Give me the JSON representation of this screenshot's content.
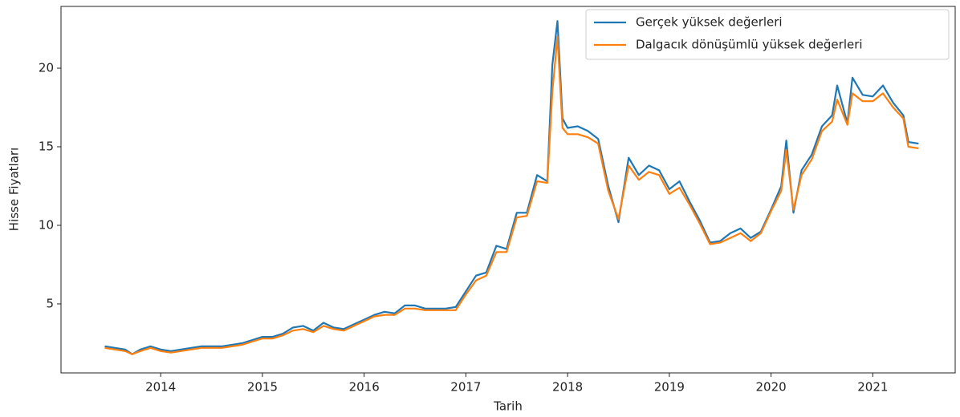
{
  "chart_data": {
    "type": "line",
    "xlabel": "Tarih",
    "ylabel": "Hisse Fiyatları",
    "x": [
      2013.45,
      2013.55,
      2013.65,
      2013.72,
      2013.8,
      2013.9,
      2014.0,
      2014.1,
      2014.2,
      2014.3,
      2014.4,
      2014.5,
      2014.6,
      2014.7,
      2014.8,
      2014.9,
      2015.0,
      2015.1,
      2015.2,
      2015.3,
      2015.4,
      2015.5,
      2015.6,
      2015.7,
      2015.8,
      2015.9,
      2016.0,
      2016.1,
      2016.2,
      2016.3,
      2016.4,
      2016.5,
      2016.6,
      2016.7,
      2016.8,
      2016.9,
      2017.0,
      2017.1,
      2017.2,
      2017.3,
      2017.4,
      2017.5,
      2017.6,
      2017.7,
      2017.8,
      2017.85,
      2017.9,
      2017.95,
      2018.0,
      2018.1,
      2018.2,
      2018.3,
      2018.4,
      2018.5,
      2018.6,
      2018.7,
      2018.8,
      2018.9,
      2019.0,
      2019.1,
      2019.2,
      2019.3,
      2019.4,
      2019.5,
      2019.6,
      2019.7,
      2019.8,
      2019.9,
      2020.0,
      2020.1,
      2020.15,
      2020.22,
      2020.3,
      2020.4,
      2020.5,
      2020.6,
      2020.65,
      2020.75,
      2020.8,
      2020.9,
      2021.0,
      2021.1,
      2021.2,
      2021.3,
      2021.35,
      2021.45
    ],
    "series": [
      {
        "name": "Gerçek yüksek değerleri",
        "color": "#1f77b4",
        "values": [
          2.3,
          2.2,
          2.1,
          1.8,
          2.1,
          2.3,
          2.1,
          2.0,
          2.1,
          2.2,
          2.3,
          2.3,
          2.3,
          2.4,
          2.5,
          2.7,
          2.9,
          2.9,
          3.1,
          3.5,
          3.6,
          3.3,
          3.8,
          3.5,
          3.4,
          3.7,
          4.0,
          4.3,
          4.5,
          4.4,
          4.9,
          4.9,
          4.7,
          4.7,
          4.7,
          4.8,
          5.8,
          6.8,
          7.0,
          8.7,
          8.5,
          10.8,
          10.8,
          13.2,
          12.8,
          20.2,
          23.0,
          16.8,
          16.2,
          16.3,
          16.0,
          15.5,
          12.5,
          10.2,
          14.3,
          13.2,
          13.8,
          13.5,
          12.3,
          12.8,
          11.5,
          10.3,
          8.9,
          9.0,
          9.5,
          9.8,
          9.2,
          9.6,
          11.0,
          12.5,
          15.4,
          10.8,
          13.5,
          14.5,
          16.3,
          17.0,
          18.9,
          16.5,
          19.4,
          18.3,
          18.2,
          18.9,
          17.8,
          17.0,
          15.3,
          15.2
        ]
      },
      {
        "name": "Dalgacık dönüşümlü yüksek değerleri",
        "color": "#ff7f0e",
        "values": [
          2.2,
          2.1,
          2.0,
          1.8,
          2.0,
          2.2,
          2.0,
          1.9,
          2.0,
          2.1,
          2.2,
          2.2,
          2.2,
          2.3,
          2.4,
          2.6,
          2.8,
          2.8,
          3.0,
          3.3,
          3.4,
          3.2,
          3.6,
          3.4,
          3.3,
          3.6,
          3.9,
          4.2,
          4.3,
          4.3,
          4.7,
          4.7,
          4.6,
          4.6,
          4.6,
          4.6,
          5.6,
          6.5,
          6.8,
          8.3,
          8.3,
          10.5,
          10.6,
          12.8,
          12.7,
          18.5,
          22.0,
          16.2,
          15.8,
          15.8,
          15.6,
          15.2,
          12.2,
          10.4,
          13.8,
          12.9,
          13.4,
          13.2,
          12.0,
          12.4,
          11.3,
          10.1,
          8.8,
          8.9,
          9.2,
          9.5,
          9.0,
          9.5,
          10.9,
          12.2,
          14.8,
          11.0,
          13.2,
          14.2,
          16.0,
          16.6,
          18.0,
          16.4,
          18.4,
          17.9,
          17.9,
          18.4,
          17.5,
          16.8,
          15.0,
          14.9
        ]
      }
    ],
    "xlim": [
      2013.02,
      2021.81
    ],
    "xticks": [
      2014,
      2015,
      2016,
      2017,
      2018,
      2019,
      2020,
      2021
    ],
    "ylim": [
      0.61,
      23.93
    ],
    "yticks": [
      5,
      10,
      15,
      20
    ],
    "grid": false,
    "legend": "upper right"
  }
}
